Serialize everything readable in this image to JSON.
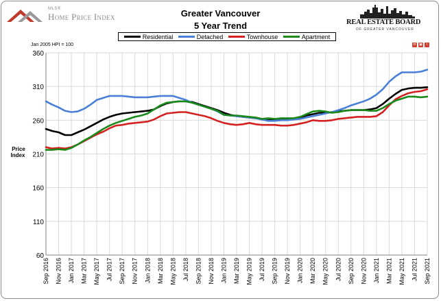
{
  "header": {
    "mls_small": "MLS®",
    "mls_logo_text": "Home Price Index",
    "title_line1": "Greater Vancouver",
    "title_line2": "5 Year Trend",
    "board_name": "REAL ESTATE BOARD",
    "board_sub": "OF GREATER VANCOUVER"
  },
  "note": "Jan 2005 HPI = 100",
  "colors": {
    "residential": "#000000",
    "detached": "#4a7fd8",
    "townhouse": "#d42020",
    "apartment": "#1a8a1a",
    "grid": "#dadada",
    "axis": "#808080"
  },
  "icons": [
    "mail-icon",
    "print-icon",
    "info-icon"
  ],
  "chart_data": {
    "type": "line",
    "title": "Greater Vancouver 5 Year Trend",
    "ylabel": "Price Index",
    "ylim": [
      60,
      360
    ],
    "yticks": [
      60,
      110,
      160,
      210,
      260,
      310,
      360
    ],
    "grid": true,
    "legend_position": "top",
    "x": [
      "Sep 2016",
      "Oct 2016",
      "Nov 2016",
      "Dec 2016",
      "Jan 2017",
      "Feb 2017",
      "Mar 2017",
      "Apr 2017",
      "May 2017",
      "Jun 2017",
      "Jul 2017",
      "Aug 2017",
      "Sep 2017",
      "Oct 2017",
      "Nov 2017",
      "Dec 2017",
      "Jan 2018",
      "Feb 2018",
      "Mar 2018",
      "Apr 2018",
      "May 2018",
      "Jun 2018",
      "Jul 2018",
      "Aug 2018",
      "Sep 2018",
      "Oct 2018",
      "Nov 2018",
      "Dec 2018",
      "Jan 2019",
      "Feb 2019",
      "Mar 2019",
      "Apr 2019",
      "May 2019",
      "Jun 2019",
      "Jul 2019",
      "Aug 2019",
      "Sep 2019",
      "Oct 2019",
      "Nov 2019",
      "Dec 2019",
      "Jan 2020",
      "Feb 2020",
      "Mar 2020",
      "Apr 2020",
      "May 2020",
      "Jun 2020",
      "Jul 2020",
      "Aug 2020",
      "Sep 2020",
      "Oct 2020",
      "Nov 2020",
      "Dec 2020",
      "Jan 2021",
      "Feb 2021",
      "Mar 2021",
      "Apr 2021",
      "May 2021",
      "Jun 2021",
      "Jul 2021",
      "Aug 2021",
      "Sep 2021"
    ],
    "xtick_labels": [
      "Sep 2016",
      "Nov 2016",
      "Jan 2017",
      "Mar 2017",
      "May 2017",
      "Jul 2017",
      "Sep 2017",
      "Nov 2017",
      "Jan 2018",
      "Mar 2018",
      "May 2018",
      "Jul 2018",
      "Sep 2018",
      "Nov 2018",
      "Jan 2019",
      "Mar 2019",
      "May 2019",
      "Jul 2019",
      "Sep 2019",
      "Nov 2019",
      "Jan 2020",
      "Mar 2020",
      "May 2020",
      "Jul 2020",
      "Sep 2020",
      "Nov 2020",
      "Jan 2021",
      "Mar 2021",
      "May 2021",
      "Jul 2021",
      "Sep 2021"
    ],
    "series": [
      {
        "name": "Residential",
        "color": "#000000",
        "values": [
          247,
          244,
          242,
          238,
          238,
          242,
          246,
          251,
          256,
          261,
          265,
          268,
          270,
          271,
          272,
          273,
          274,
          276,
          281,
          285,
          287,
          288,
          288,
          287,
          284,
          281,
          278,
          275,
          271,
          268,
          266,
          265,
          264,
          263,
          261,
          260,
          261,
          261,
          261,
          262,
          264,
          267,
          269,
          271,
          271,
          272,
          273,
          274,
          275,
          275,
          275,
          276,
          278,
          284,
          292,
          299,
          305,
          307,
          308,
          308,
          309
        ]
      },
      {
        "name": "Detached",
        "color": "#4a7fd8",
        "values": [
          288,
          283,
          279,
          274,
          272,
          273,
          277,
          283,
          290,
          293,
          296,
          296,
          296,
          295,
          294,
          294,
          294,
          295,
          296,
          296,
          296,
          293,
          290,
          286,
          283,
          280,
          277,
          273,
          268,
          267,
          266,
          265,
          264,
          263,
          261,
          259,
          259,
          260,
          260,
          261,
          262,
          264,
          266,
          268,
          270,
          272,
          275,
          278,
          282,
          285,
          288,
          292,
          298,
          306,
          317,
          325,
          331,
          331,
          331,
          332,
          335
        ]
      },
      {
        "name": "Townhouse",
        "color": "#d42020",
        "values": [
          220,
          218,
          219,
          218,
          220,
          224,
          229,
          234,
          239,
          243,
          248,
          252,
          253,
          255,
          256,
          257,
          258,
          261,
          266,
          270,
          271,
          272,
          272,
          270,
          268,
          266,
          263,
          259,
          256,
          254,
          253,
          254,
          256,
          254,
          253,
          253,
          253,
          252,
          252,
          253,
          255,
          257,
          260,
          259,
          259,
          260,
          262,
          263,
          264,
          265,
          265,
          265,
          266,
          272,
          282,
          291,
          296,
          300,
          302,
          303,
          306
        ]
      },
      {
        "name": "Apartment",
        "color": "#1a8a1a",
        "values": [
          216,
          216,
          217,
          216,
          219,
          224,
          230,
          235,
          241,
          247,
          252,
          256,
          259,
          262,
          265,
          267,
          270,
          276,
          282,
          286,
          287,
          288,
          288,
          286,
          283,
          280,
          277,
          274,
          268,
          267,
          267,
          266,
          265,
          264,
          262,
          263,
          262,
          263,
          263,
          263,
          265,
          269,
          273,
          274,
          273,
          271,
          272,
          274,
          275,
          275,
          275,
          274,
          274,
          278,
          284,
          289,
          292,
          295,
          295,
          294,
          295
        ]
      }
    ]
  }
}
